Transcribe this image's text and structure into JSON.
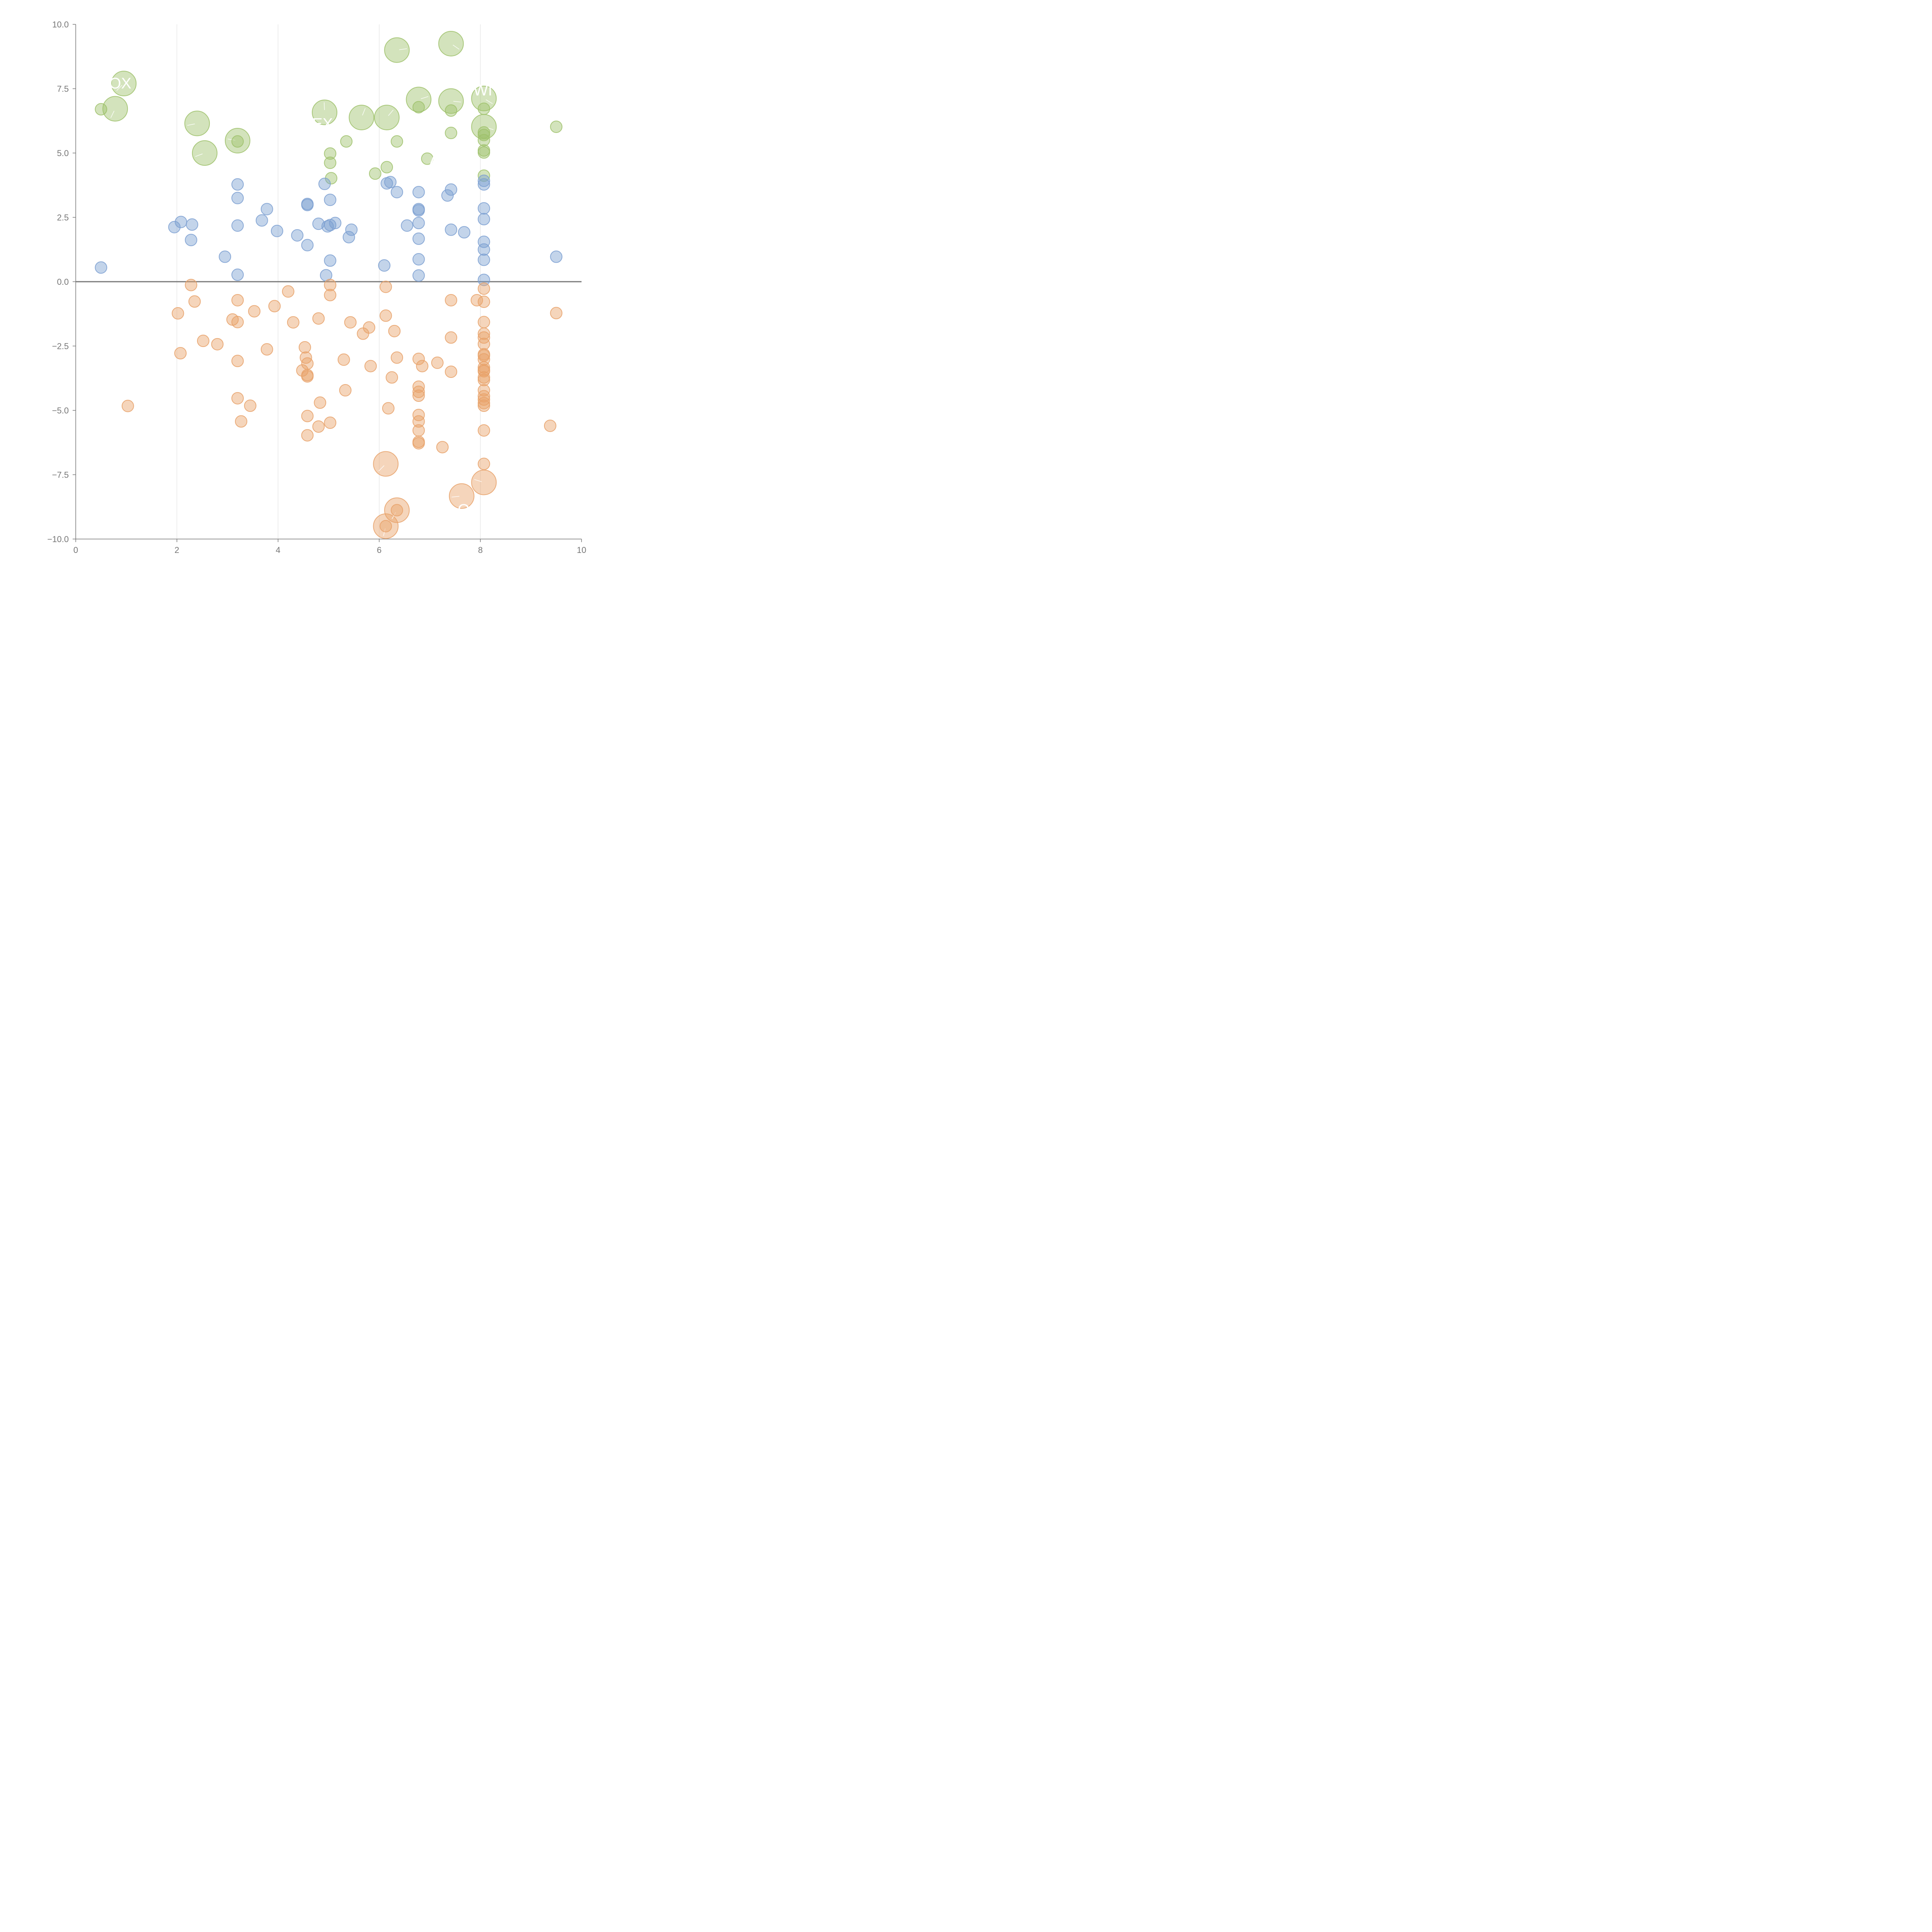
{
  "chart_data": {
    "type": "scatter",
    "title": "",
    "xlabel": "",
    "ylabel": "",
    "xlim": [
      0,
      10
    ],
    "ylim": [
      -10,
      10
    ],
    "x_ticks": [
      "0",
      "2",
      "4",
      "6",
      "8",
      "10"
    ],
    "y_ticks": [
      "10.0",
      "7.5",
      "5.0",
      "2.5",
      "0.0",
      "−2.5",
      "−5.0",
      "−7.5",
      "−10.0"
    ],
    "grid": "vertical",
    "zero_line": true,
    "colors": {
      "green": "#9dc16a",
      "blue": "#7b9fd1",
      "orange": "#e8a168",
      "axis": "#777777",
      "grid": "#dddddd"
    },
    "series": [
      {
        "color_key": "green",
        "points": [
          [
            0.95,
            7.7,
            1
          ],
          [
            0.5,
            6.7,
            0
          ],
          [
            0.78,
            6.72,
            1
          ],
          [
            2.4,
            6.15,
            1
          ],
          [
            2.55,
            5.0,
            1
          ],
          [
            3.2,
            5.48,
            1
          ],
          [
            3.2,
            5.45,
            0
          ],
          [
            4.92,
            6.58,
            1
          ],
          [
            5.65,
            6.38,
            1
          ],
          [
            6.15,
            6.38,
            1
          ],
          [
            6.35,
            9.0,
            1
          ],
          [
            6.78,
            7.08,
            1
          ],
          [
            6.78,
            6.78,
            0
          ],
          [
            7.42,
            9.25,
            1
          ],
          [
            7.42,
            7.02,
            1
          ],
          [
            7.42,
            6.65,
            0
          ],
          [
            7.42,
            5.78,
            0
          ],
          [
            8.07,
            7.12,
            1
          ],
          [
            8.07,
            6.72,
            0
          ],
          [
            8.07,
            6.02,
            1
          ],
          [
            8.07,
            5.8,
            0
          ],
          [
            8.07,
            5.7,
            0
          ],
          [
            8.07,
            5.5,
            0
          ],
          [
            8.07,
            5.1,
            0
          ],
          [
            8.07,
            5.02,
            0
          ],
          [
            8.07,
            4.12,
            0
          ],
          [
            9.5,
            6.02,
            0
          ],
          [
            5.35,
            5.45,
            0
          ],
          [
            6.35,
            5.45,
            0
          ],
          [
            5.03,
            4.98,
            0
          ],
          [
            5.03,
            4.62,
            0
          ],
          [
            5.05,
            4.02,
            0
          ],
          [
            5.92,
            4.2,
            0
          ],
          [
            6.15,
            4.45,
            0
          ],
          [
            6.95,
            4.78,
            0
          ]
        ]
      },
      {
        "color_key": "blue",
        "points": [
          [
            0.5,
            0.55,
            0
          ],
          [
            1.95,
            2.12,
            0
          ],
          [
            2.08,
            2.32,
            0
          ],
          [
            2.3,
            2.22,
            0
          ],
          [
            2.28,
            1.62,
            0
          ],
          [
            2.95,
            0.97,
            0
          ],
          [
            3.2,
            3.78,
            0
          ],
          [
            3.2,
            3.25,
            0
          ],
          [
            3.2,
            2.18,
            0
          ],
          [
            3.2,
            0.27,
            0
          ],
          [
            3.68,
            2.38,
            0
          ],
          [
            3.78,
            2.82,
            0
          ],
          [
            3.98,
            1.97,
            0
          ],
          [
            4.38,
            1.8,
            0
          ],
          [
            4.58,
            3.02,
            0
          ],
          [
            4.58,
            2.98,
            0
          ],
          [
            4.58,
            1.42,
            0
          ],
          [
            4.8,
            2.25,
            0
          ],
          [
            4.92,
            3.8,
            0
          ],
          [
            4.98,
            2.15,
            0
          ],
          [
            5.03,
            2.2,
            0
          ],
          [
            5.03,
            3.18,
            0
          ],
          [
            5.03,
            0.82,
            0
          ],
          [
            4.95,
            0.25,
            0
          ],
          [
            5.13,
            2.28,
            0
          ],
          [
            5.4,
            1.73,
            0
          ],
          [
            5.45,
            2.02,
            0
          ],
          [
            6.1,
            0.63,
            0
          ],
          [
            6.15,
            3.82,
            0
          ],
          [
            6.22,
            3.87,
            0
          ],
          [
            6.35,
            3.48,
            0
          ],
          [
            6.55,
            2.18,
            0
          ],
          [
            6.78,
            3.48,
            0
          ],
          [
            6.78,
            2.82,
            0
          ],
          [
            6.78,
            2.77,
            0
          ],
          [
            6.78,
            2.28,
            0
          ],
          [
            6.78,
            1.67,
            0
          ],
          [
            6.78,
            0.87,
            0
          ],
          [
            6.78,
            0.24,
            0
          ],
          [
            7.35,
            3.35,
            0
          ],
          [
            7.42,
            3.58,
            0
          ],
          [
            7.42,
            2.02,
            0
          ],
          [
            7.68,
            1.92,
            0
          ],
          [
            8.07,
            3.92,
            0
          ],
          [
            8.07,
            3.78,
            0
          ],
          [
            8.07,
            2.85,
            0
          ],
          [
            8.07,
            2.43,
            0
          ],
          [
            8.07,
            1.55,
            0
          ],
          [
            8.07,
            1.25,
            0
          ],
          [
            8.07,
            0.85,
            0
          ],
          [
            8.07,
            0.07,
            0
          ],
          [
            9.5,
            0.97,
            0
          ]
        ]
      },
      {
        "color_key": "orange",
        "points": [
          [
            1.03,
            -4.83,
            0
          ],
          [
            2.02,
            -1.23,
            0
          ],
          [
            2.28,
            -0.13,
            0
          ],
          [
            2.35,
            -0.77,
            0
          ],
          [
            2.07,
            -2.78,
            0
          ],
          [
            2.52,
            -2.3,
            0
          ],
          [
            2.8,
            -2.43,
            0
          ],
          [
            3.1,
            -1.47,
            0
          ],
          [
            3.2,
            -0.72,
            0
          ],
          [
            3.2,
            -1.57,
            0
          ],
          [
            3.2,
            -3.08,
            0
          ],
          [
            3.2,
            -4.53,
            0
          ],
          [
            3.27,
            -5.43,
            0
          ],
          [
            3.45,
            -4.82,
            0
          ],
          [
            3.53,
            -1.15,
            0
          ],
          [
            3.78,
            -2.63,
            0
          ],
          [
            3.93,
            -0.95,
            0
          ],
          [
            4.2,
            -0.38,
            0
          ],
          [
            4.3,
            -1.58,
            0
          ],
          [
            4.48,
            -3.45,
            0
          ],
          [
            4.53,
            -2.55,
            0
          ],
          [
            4.55,
            -2.95,
            0
          ],
          [
            4.58,
            -3.18,
            0
          ],
          [
            4.58,
            -3.63,
            0
          ],
          [
            4.58,
            -3.68,
            0
          ],
          [
            4.58,
            -5.22,
            0
          ],
          [
            4.58,
            -5.97,
            0
          ],
          [
            4.8,
            -1.43,
            0
          ],
          [
            4.8,
            -5.63,
            0
          ],
          [
            4.83,
            -4.7,
            0
          ],
          [
            5.03,
            -0.13,
            0
          ],
          [
            5.03,
            -0.52,
            0
          ],
          [
            5.03,
            -5.48,
            0
          ],
          [
            5.3,
            -3.03,
            0
          ],
          [
            5.33,
            -4.22,
            0
          ],
          [
            5.43,
            -1.58,
            0
          ],
          [
            5.68,
            -2.02,
            0
          ],
          [
            5.8,
            -1.78,
            0
          ],
          [
            5.83,
            -3.28,
            0
          ],
          [
            6.13,
            -0.2,
            0
          ],
          [
            6.13,
            -1.32,
            0
          ],
          [
            6.13,
            -7.08,
            1
          ],
          [
            6.13,
            -9.5,
            1
          ],
          [
            6.13,
            -9.5,
            0
          ],
          [
            6.18,
            -4.92,
            0
          ],
          [
            6.25,
            -3.72,
            0
          ],
          [
            6.3,
            -1.92,
            0
          ],
          [
            6.35,
            -2.95,
            0
          ],
          [
            6.35,
            -8.88,
            1
          ],
          [
            6.35,
            -8.88,
            0
          ],
          [
            6.78,
            -3.0,
            0
          ],
          [
            6.78,
            -4.08,
            0
          ],
          [
            6.78,
            -4.28,
            0
          ],
          [
            6.78,
            -4.43,
            0
          ],
          [
            6.78,
            -5.18,
            0
          ],
          [
            6.78,
            -5.43,
            0
          ],
          [
            6.78,
            -5.78,
            0
          ],
          [
            6.78,
            -6.22,
            0
          ],
          [
            6.78,
            -6.28,
            0
          ],
          [
            6.85,
            -3.28,
            0
          ],
          [
            7.15,
            -3.15,
            0
          ],
          [
            7.25,
            -6.43,
            0
          ],
          [
            7.42,
            -0.72,
            0
          ],
          [
            7.42,
            -2.17,
            0
          ],
          [
            7.42,
            -3.5,
            0
          ],
          [
            7.63,
            -8.33,
            1
          ],
          [
            7.93,
            -0.72,
            0
          ],
          [
            8.07,
            -0.27,
            0
          ],
          [
            8.07,
            -0.78,
            0
          ],
          [
            8.07,
            -1.57,
            0
          ],
          [
            8.07,
            -2.02,
            0
          ],
          [
            8.07,
            -2.17,
            0
          ],
          [
            8.07,
            -2.42,
            0
          ],
          [
            8.07,
            -2.82,
            0
          ],
          [
            8.07,
            -2.87,
            0
          ],
          [
            8.07,
            -3.02,
            0
          ],
          [
            8.07,
            -3.33,
            0
          ],
          [
            8.07,
            -3.43,
            0
          ],
          [
            8.07,
            -3.48,
            0
          ],
          [
            8.07,
            -3.72,
            0
          ],
          [
            8.07,
            -3.82,
            0
          ],
          [
            8.07,
            -4.22,
            0
          ],
          [
            8.07,
            -4.45,
            0
          ],
          [
            8.07,
            -4.58,
            0
          ],
          [
            8.07,
            -4.72,
            0
          ],
          [
            8.07,
            -4.82,
            0
          ],
          [
            8.07,
            -5.78,
            0
          ],
          [
            8.07,
            -7.08,
            0
          ],
          [
            8.07,
            -7.8,
            1
          ],
          [
            9.38,
            -5.6,
            0
          ],
          [
            9.5,
            -1.22,
            0
          ]
        ]
      }
    ],
    "annotations": [
      {
        "text": "OX",
        "x": 0.88,
        "y": 7.72,
        "color_key": "white"
      },
      {
        "text": "EX",
        "x": 4.88,
        "y": 6.15,
        "color_key": "white"
      },
      {
        "text": "WI",
        "x": 8.05,
        "y": 7.45,
        "color_key": "white"
      },
      {
        "text": "A",
        "x": 7.1,
        "y": 4.75,
        "color_key": "white"
      },
      {
        "text": "O",
        "x": 7.67,
        "y": -8.85,
        "color_key": "white"
      }
    ]
  }
}
